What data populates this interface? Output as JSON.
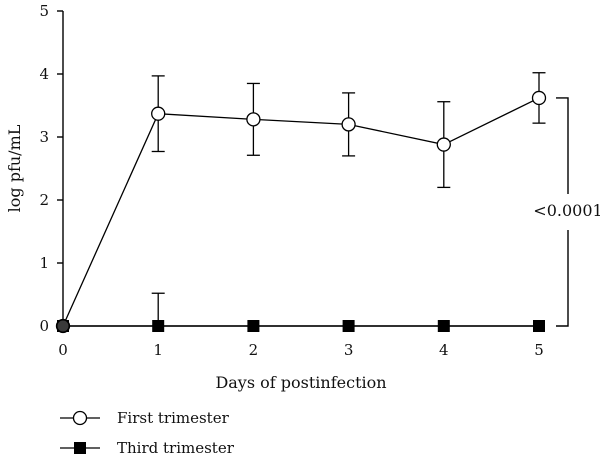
{
  "chart_data": {
    "type": "line",
    "xlabel": "Days of postinfection",
    "ylabel": "log pfu/mL",
    "x": [
      0,
      1,
      2,
      3,
      4,
      5
    ],
    "xlim": [
      0,
      5
    ],
    "ylim": [
      0,
      5
    ],
    "xticks": [
      "0",
      "1",
      "2",
      "3",
      "4",
      "5"
    ],
    "yticks": [
      "0",
      "1",
      "2",
      "3",
      "4",
      "5"
    ],
    "series": [
      {
        "name": "First trimester",
        "marker": "open-circle",
        "values": [
          0,
          3.37,
          3.28,
          3.2,
          2.88,
          3.62
        ],
        "error": [
          0,
          0.6,
          0.57,
          0.5,
          0.68,
          0.4
        ]
      },
      {
        "name": "Third trimester",
        "marker": "filled-square",
        "values": [
          0,
          0,
          0,
          0,
          0,
          0
        ],
        "error": [
          0,
          0.52,
          0,
          0,
          0,
          0
        ]
      }
    ],
    "annotation": {
      "text": "<0.0001"
    },
    "legend_position": "bottom-left"
  }
}
